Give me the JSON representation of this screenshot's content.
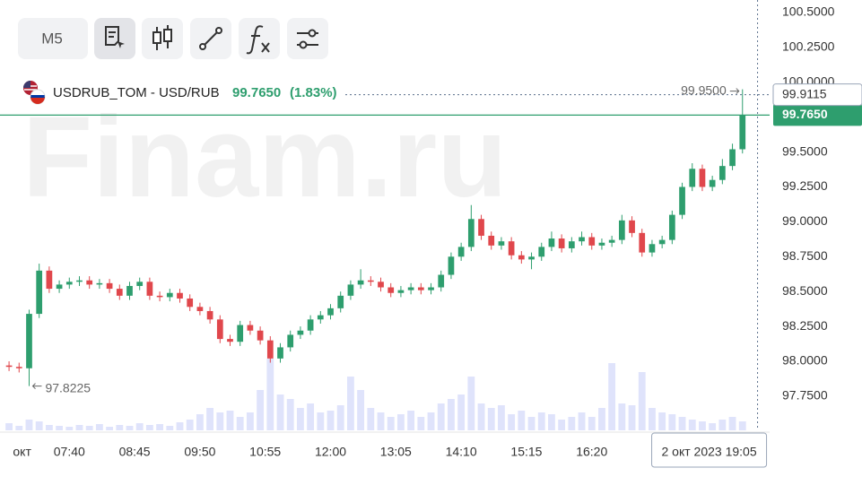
{
  "chart_data": {
    "type": "candlestick",
    "watermark": "Finam.ru",
    "timeframe": "M5",
    "symbol": "USDRUB_TOM - USD/RUB",
    "change": "(1.83%)",
    "last": {
      "value": 99.765,
      "label": "99.7650"
    },
    "up_color": "#2e9e6e",
    "down_color": "#e0474c",
    "volume_color": "#dfe3fb",
    "grid": false,
    "xlim": [
      -0.9,
      75.7
    ],
    "ylim": [
      97.505,
      100.59
    ],
    "volume_ylim": [
      0,
      100
    ],
    "yticks": [
      {
        "value": 100.5,
        "label": "100.5000"
      },
      {
        "value": 100.25,
        "label": "100.2500"
      },
      {
        "value": 100.0,
        "label": "100.0000"
      },
      {
        "value": 99.5,
        "label": "99.5000"
      },
      {
        "value": 99.25,
        "label": "99.2500"
      },
      {
        "value": 99.0,
        "label": "99.0000"
      },
      {
        "value": 98.75,
        "label": "98.7500"
      },
      {
        "value": 98.5,
        "label": "98.5000"
      },
      {
        "value": 98.25,
        "label": "98.2500"
      },
      {
        "value": 98.0,
        "label": "98.0000"
      },
      {
        "value": 97.75,
        "label": "97.7500"
      }
    ],
    "xticks": [
      {
        "value": 1.3,
        "label": "окт"
      },
      {
        "value": 6,
        "label": "07:40"
      },
      {
        "value": 12.5,
        "label": "08:45"
      },
      {
        "value": 19,
        "label": "09:50"
      },
      {
        "value": 25.5,
        "label": "10:55"
      },
      {
        "value": 32,
        "label": "12:00"
      },
      {
        "value": 38.5,
        "label": "13:05"
      },
      {
        "value": 45,
        "label": "14:10"
      },
      {
        "value": 51.5,
        "label": "15:15"
      },
      {
        "value": 58,
        "label": "16:20"
      }
    ],
    "crosshair": {
      "x": 74.5,
      "price": {
        "value": 99.9115,
        "label": "99.9115"
      },
      "time_label": "2 окт 2023 19:05"
    },
    "high_marker": {
      "index": 73,
      "value": 99.95,
      "label": "99.9500"
    },
    "low_marker": {
      "index": 2,
      "value": 97.8225,
      "label": "97.8225"
    },
    "open": [
      97.97,
      97.96,
      97.95,
      98.34,
      98.65,
      98.52,
      98.55,
      98.57,
      98.58,
      98.55,
      98.56,
      98.52,
      98.47,
      98.54,
      98.57,
      98.47,
      98.46,
      98.49,
      98.45,
      98.39,
      98.36,
      98.3,
      98.16,
      98.14,
      98.26,
      98.22,
      98.15,
      98.02,
      98.1,
      98.19,
      98.22,
      98.3,
      98.33,
      98.38,
      98.47,
      98.55,
      98.58,
      98.57,
      98.53,
      98.49,
      98.51,
      98.53,
      98.51,
      98.53,
      98.62,
      98.75,
      98.82,
      99.02,
      98.9,
      98.83,
      98.86,
      98.76,
      98.73,
      98.75,
      98.82,
      98.88,
      98.81,
      98.86,
      98.89,
      98.83,
      98.85,
      98.87,
      99.01,
      98.92,
      98.78,
      98.84,
      98.87,
      99.05,
      99.25,
      99.38,
      99.25,
      99.3,
      99.4,
      99.52
    ],
    "high": [
      98.0,
      97.99,
      98.37,
      98.7,
      98.68,
      98.58,
      98.6,
      98.61,
      98.61,
      98.59,
      98.59,
      98.55,
      98.57,
      98.6,
      98.6,
      98.5,
      98.52,
      98.52,
      98.48,
      98.42,
      98.39,
      98.33,
      98.19,
      98.29,
      98.29,
      98.25,
      98.18,
      98.13,
      98.22,
      98.25,
      98.33,
      98.36,
      98.41,
      98.5,
      98.58,
      98.66,
      98.61,
      98.6,
      98.56,
      98.54,
      98.56,
      98.56,
      98.56,
      98.65,
      98.78,
      98.85,
      99.12,
      99.05,
      98.93,
      98.89,
      98.89,
      98.79,
      98.78,
      98.85,
      98.93,
      98.91,
      98.89,
      98.93,
      98.92,
      98.88,
      98.9,
      99.05,
      99.04,
      98.95,
      98.87,
      98.9,
      99.08,
      99.28,
      99.42,
      99.41,
      99.33,
      99.45,
      99.56,
      99.95
    ],
    "low": [
      97.93,
      97.92,
      97.8225,
      98.31,
      98.49,
      98.49,
      98.52,
      98.54,
      98.52,
      98.52,
      98.49,
      98.44,
      98.44,
      98.51,
      98.44,
      98.43,
      98.43,
      98.42,
      98.36,
      98.33,
      98.27,
      98.13,
      98.11,
      98.11,
      98.19,
      98.12,
      97.99,
      97.99,
      98.07,
      98.16,
      98.19,
      98.27,
      98.3,
      98.35,
      98.44,
      98.52,
      98.54,
      98.5,
      98.46,
      98.46,
      98.48,
      98.48,
      98.48,
      98.5,
      98.59,
      98.72,
      98.79,
      98.87,
      98.8,
      98.8,
      98.73,
      98.7,
      98.66,
      98.72,
      98.79,
      98.78,
      98.78,
      98.83,
      98.8,
      98.8,
      98.82,
      98.84,
      98.89,
      98.75,
      98.75,
      98.81,
      98.84,
      99.02,
      99.22,
      99.22,
      99.22,
      99.27,
      99.37,
      99.49
    ],
    "close": [
      97.96,
      97.95,
      98.34,
      98.65,
      98.52,
      98.55,
      98.57,
      98.58,
      98.55,
      98.56,
      98.52,
      98.47,
      98.54,
      98.57,
      98.47,
      98.46,
      98.49,
      98.45,
      98.39,
      98.36,
      98.3,
      98.16,
      98.14,
      98.26,
      98.22,
      98.15,
      98.02,
      98.1,
      98.19,
      98.22,
      98.3,
      98.33,
      98.38,
      98.47,
      98.55,
      98.58,
      98.57,
      98.53,
      98.49,
      98.51,
      98.53,
      98.51,
      98.53,
      98.62,
      98.75,
      98.82,
      99.02,
      98.9,
      98.83,
      98.86,
      98.76,
      98.73,
      98.75,
      98.82,
      98.88,
      98.81,
      98.86,
      98.89,
      98.83,
      98.85,
      98.87,
      99.01,
      98.92,
      98.78,
      98.84,
      98.87,
      99.05,
      99.25,
      99.38,
      99.25,
      99.3,
      99.4,
      99.52,
      99.765
    ],
    "volume": [
      8,
      5,
      12,
      10,
      6,
      5,
      4,
      6,
      5,
      7,
      4,
      6,
      5,
      8,
      6,
      7,
      5,
      9,
      12,
      18,
      25,
      20,
      22,
      15,
      20,
      45,
      80,
      40,
      35,
      25,
      30,
      20,
      22,
      28,
      60,
      45,
      25,
      20,
      15,
      18,
      22,
      15,
      20,
      30,
      35,
      40,
      60,
      30,
      25,
      28,
      18,
      22,
      15,
      20,
      18,
      12,
      15,
      20,
      15,
      25,
      75,
      30,
      28,
      65,
      25,
      20,
      18,
      15,
      12,
      10,
      8,
      12,
      15,
      10
    ]
  }
}
